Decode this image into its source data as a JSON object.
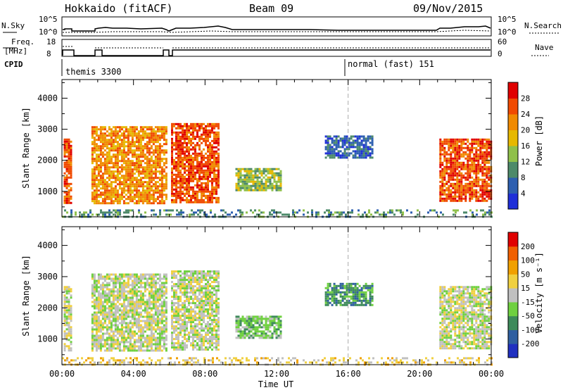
{
  "header": {
    "radar": "Hokkaido (fitACF)",
    "beam": "Beam 09",
    "date": "09/Nov/2015"
  },
  "top_panels": {
    "nsky_label": "N.Sky",
    "nsky_ticks": [
      "10^5",
      "10^0"
    ],
    "nsearch_label": "N.Search",
    "freq_label_1": "Freq.",
    "freq_label_2": "[MHz]",
    "freq_ticks": [
      "18",
      "8"
    ],
    "nave_ticks": [
      "60",
      "0"
    ],
    "nave_label": "Nave",
    "cpid_label": "CPID",
    "cpid_segments": [
      {
        "label": "themis 3300",
        "start_hour": 0
      },
      {
        "label": "normal (fast) 151",
        "start_hour": 16
      }
    ]
  },
  "chart_data": [
    {
      "type": "heatmap",
      "name": "power-panel",
      "ylabel": "Slant Range [km]",
      "xlabel": "",
      "ylim": [
        180,
        4600
      ],
      "xlim_hours": [
        0,
        24
      ],
      "y_ticks": [
        1000,
        2000,
        3000,
        4000
      ],
      "colorbar_label": "Power [dB]",
      "colorbar_ticks": [
        "4",
        "8",
        "12",
        "16",
        "20",
        "24",
        "28"
      ],
      "colorbar_colors": [
        "#1f2fd8",
        "#2d5fb0",
        "#4d8a6a",
        "#8fc04a",
        "#e6b800",
        "#f08a00",
        "#f04a00",
        "#e00000"
      ],
      "regions": [
        {
          "t0": 0.1,
          "t1": 0.55,
          "r0": 650,
          "r1": 2700,
          "level": 6
        },
        {
          "t0": 1.65,
          "t1": 5.8,
          "r0": 650,
          "r1": 3100,
          "level": 5
        },
        {
          "t0": 6.1,
          "t1": 8.8,
          "r0": 650,
          "r1": 3200,
          "level": 6
        },
        {
          "t0": 9.7,
          "t1": 12.2,
          "r0": 1050,
          "r1": 1750,
          "level": 3
        },
        {
          "t0": 14.7,
          "t1": 17.4,
          "r0": 2100,
          "r1": 2800,
          "level": 1
        },
        {
          "t0": 21.1,
          "t1": 24.0,
          "r0": 700,
          "r1": 2700,
          "level": 6
        },
        {
          "t0": 0.0,
          "t1": 24.0,
          "r0": 190,
          "r1": 420,
          "level": 2
        }
      ]
    },
    {
      "type": "heatmap",
      "name": "velocity-panel",
      "ylabel": "Slant Range [km]",
      "xlabel": "Time UT",
      "ylim": [
        180,
        4600
      ],
      "xlim_hours": [
        0,
        24
      ],
      "y_ticks": [
        1000,
        2000,
        3000,
        4000
      ],
      "x_ticks": [
        "00:00",
        "04:00",
        "08:00",
        "12:00",
        "16:00",
        "20:00",
        "00:00"
      ],
      "colorbar_label": "Velocity [m s⁻¹]",
      "colorbar_ticks": [
        "200",
        "100",
        "50",
        "15",
        "-15",
        "-50",
        "-100",
        "-200"
      ],
      "colorbar_colors": [
        "#2030c0",
        "#2f5fa0",
        "#3d8a5a",
        "#6fd040",
        "#c0c0c0",
        "#f0d040",
        "#f0a000",
        "#f06000",
        "#e00000"
      ],
      "regions": [
        {
          "t0": 0.1,
          "t1": 0.55,
          "r0": 650,
          "r1": 2700,
          "level": 4
        },
        {
          "t0": 1.65,
          "t1": 5.8,
          "r0": 650,
          "r1": 3100,
          "level": 4
        },
        {
          "t0": 6.1,
          "t1": 8.8,
          "r0": 650,
          "r1": 3200,
          "level": 4
        },
        {
          "t0": 9.7,
          "t1": 12.2,
          "r0": 1050,
          "r1": 1750,
          "level": 3
        },
        {
          "t0": 14.7,
          "t1": 17.4,
          "r0": 2100,
          "r1": 2800,
          "level": 2
        },
        {
          "t0": 21.1,
          "t1": 24.0,
          "r0": 700,
          "r1": 2700,
          "level": 4
        },
        {
          "t0": 0.0,
          "t1": 24.0,
          "r0": 190,
          "r1": 420,
          "level": 5
        }
      ]
    }
  ]
}
